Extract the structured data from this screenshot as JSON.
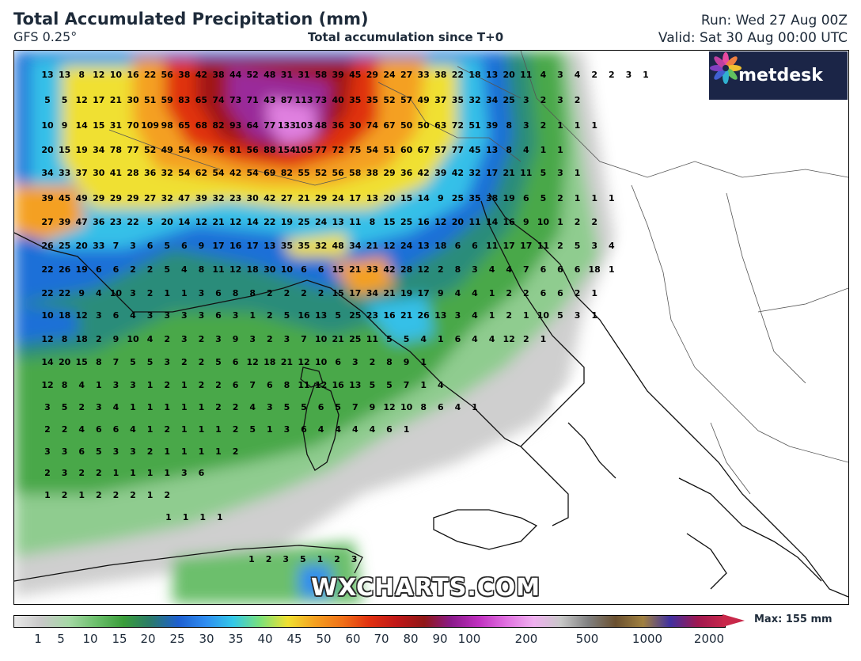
{
  "header": {
    "title": "Total Accumulated Precipitation (mm)",
    "model": "GFS 0.25°",
    "subtitle": "Total accumulation since T+0",
    "run": "Run: Wed 27 Aug 00Z",
    "valid": "Valid: Sat 30 Aug 00:00 UTC"
  },
  "logo": {
    "text": "metdesk",
    "icon": "flower-logo-icon",
    "bg": "#1b2547"
  },
  "watermark": "WXCHARTS.COM",
  "colorbar": {
    "ticks": [
      "1",
      "5",
      "10",
      "15",
      "20",
      "25",
      "30",
      "35",
      "40",
      "45",
      "50",
      "60",
      "70",
      "80",
      "90",
      "100",
      "200",
      "500",
      "1000",
      "2000"
    ],
    "max_label": "Max: 155 mm",
    "colors": [
      "#e8e8e8",
      "#c8c8c8",
      "#a5d8a5",
      "#6cbf6c",
      "#3a9d3a",
      "#2a7a6a",
      "#1e5fd0",
      "#2f8cf0",
      "#34c8e8",
      "#7ae07a",
      "#f0e030",
      "#f4a020",
      "#f07018",
      "#e03010",
      "#c01818",
      "#901818",
      "#8a1a8a",
      "#c030c0",
      "#e070e0",
      "#f0b0f0",
      "#c8c8c8",
      "#808080",
      "#6a5030",
      "#a08040",
      "#4030a0",
      "#a01850",
      "#c8284a"
    ]
  },
  "map_values": [
    [
      "13",
      "13",
      "8",
      "12",
      "10",
      "16",
      "22",
      "56",
      "38",
      "42",
      "38",
      "44",
      "52",
      "48",
      "31",
      "31",
      "58",
      "39",
      "45",
      "29",
      "24",
      "27",
      "33",
      "38",
      "22",
      "18",
      "13",
      "20",
      "11",
      "4",
      "3",
      "4",
      "2",
      "2",
      "3",
      "1"
    ],
    [
      "5",
      "5",
      "12",
      "17",
      "21",
      "30",
      "51",
      "59",
      "83",
      "65",
      "74",
      "73",
      "71",
      "43",
      "87",
      "113",
      "73",
      "40",
      "35",
      "35",
      "52",
      "57",
      "49",
      "37",
      "35",
      "32",
      "34",
      "25",
      "3",
      "2",
      "3",
      "2"
    ],
    [
      "10",
      "9",
      "14",
      "15",
      "31",
      "70",
      "109",
      "98",
      "65",
      "68",
      "82",
      "93",
      "64",
      "77",
      "133",
      "103",
      "48",
      "36",
      "30",
      "74",
      "67",
      "50",
      "50",
      "63",
      "72",
      "51",
      "39",
      "8",
      "3",
      "2",
      "1",
      "1",
      "1"
    ],
    [
      "20",
      "15",
      "19",
      "34",
      "78",
      "77",
      "52",
      "49",
      "54",
      "69",
      "76",
      "81",
      "56",
      "88",
      "154",
      "105",
      "77",
      "72",
      "75",
      "54",
      "51",
      "60",
      "67",
      "57",
      "77",
      "45",
      "13",
      "8",
      "4",
      "1",
      "1"
    ],
    [
      "34",
      "33",
      "37",
      "30",
      "41",
      "28",
      "36",
      "32",
      "54",
      "62",
      "54",
      "42",
      "54",
      "69",
      "82",
      "55",
      "52",
      "56",
      "58",
      "38",
      "29",
      "36",
      "42",
      "39",
      "42",
      "32",
      "17",
      "21",
      "11",
      "5",
      "3",
      "1"
    ],
    [
      "39",
      "45",
      "49",
      "29",
      "29",
      "29",
      "27",
      "32",
      "47",
      "39",
      "32",
      "23",
      "30",
      "42",
      "27",
      "21",
      "29",
      "24",
      "17",
      "13",
      "20",
      "15",
      "14",
      "9",
      "25",
      "35",
      "38",
      "19",
      "6",
      "5",
      "2",
      "1",
      "1",
      "1"
    ],
    [
      "27",
      "39",
      "47",
      "36",
      "23",
      "22",
      "5",
      "20",
      "14",
      "12",
      "21",
      "12",
      "14",
      "22",
      "19",
      "25",
      "24",
      "13",
      "11",
      "8",
      "15",
      "25",
      "16",
      "12",
      "20",
      "11",
      "14",
      "16",
      "9",
      "10",
      "1",
      "2",
      "2"
    ],
    [
      "26",
      "25",
      "20",
      "33",
      "7",
      "3",
      "6",
      "5",
      "6",
      "9",
      "17",
      "16",
      "17",
      "13",
      "35",
      "35",
      "32",
      "48",
      "34",
      "21",
      "12",
      "24",
      "13",
      "18",
      "6",
      "6",
      "11",
      "17",
      "17",
      "11",
      "2",
      "5",
      "3",
      "4"
    ],
    [
      "22",
      "26",
      "19",
      "6",
      "6",
      "2",
      "2",
      "5",
      "4",
      "8",
      "11",
      "12",
      "18",
      "30",
      "10",
      "6",
      "6",
      "15",
      "21",
      "33",
      "42",
      "28",
      "12",
      "2",
      "8",
      "3",
      "4",
      "4",
      "7",
      "6",
      "6",
      "6",
      "18",
      "1"
    ],
    [
      "22",
      "22",
      "9",
      "4",
      "10",
      "3",
      "2",
      "1",
      "1",
      "3",
      "6",
      "8",
      "8",
      "2",
      "2",
      "2",
      "2",
      "15",
      "17",
      "34",
      "21",
      "19",
      "17",
      "9",
      "4",
      "4",
      "1",
      "2",
      "2",
      "6",
      "6",
      "2",
      "1"
    ],
    [
      "10",
      "18",
      "12",
      "3",
      "6",
      "4",
      "3",
      "3",
      "3",
      "3",
      "6",
      "3",
      "1",
      "2",
      "5",
      "16",
      "13",
      "5",
      "25",
      "23",
      "16",
      "21",
      "26",
      "13",
      "3",
      "4",
      "1",
      "2",
      "1",
      "10",
      "5",
      "3",
      "1"
    ],
    [
      "12",
      "8",
      "18",
      "2",
      "9",
      "10",
      "4",
      "2",
      "3",
      "2",
      "3",
      "9",
      "3",
      "2",
      "3",
      "7",
      "10",
      "21",
      "25",
      "11",
      "5",
      "5",
      "4",
      "1",
      "6",
      "4",
      "4",
      "12",
      "2",
      "1"
    ],
    [
      "14",
      "20",
      "15",
      "8",
      "7",
      "5",
      "5",
      "3",
      "2",
      "2",
      "5",
      "6",
      "12",
      "18",
      "21",
      "12",
      "10",
      "6",
      "3",
      "2",
      "8",
      "9",
      "1"
    ],
    [
      "12",
      "8",
      "4",
      "1",
      "3",
      "3",
      "1",
      "2",
      "1",
      "2",
      "2",
      "6",
      "7",
      "6",
      "8",
      "11",
      "12",
      "16",
      "13",
      "5",
      "5",
      "7",
      "1",
      "4"
    ],
    [
      "3",
      "5",
      "2",
      "3",
      "4",
      "1",
      "1",
      "1",
      "1",
      "1",
      "2",
      "2",
      "4",
      "3",
      "5",
      "5",
      "6",
      "5",
      "7",
      "9",
      "12",
      "10",
      "8",
      "6",
      "4",
      "1"
    ],
    [
      "2",
      "2",
      "4",
      "6",
      "6",
      "4",
      "1",
      "2",
      "1",
      "1",
      "1",
      "2",
      "5",
      "1",
      "3",
      "6",
      "4",
      "4",
      "4",
      "4",
      "6",
      "1"
    ],
    [
      "3",
      "3",
      "6",
      "5",
      "3",
      "3",
      "2",
      "1",
      "1",
      "1",
      "1",
      "2"
    ],
    [
      "2",
      "3",
      "2",
      "2",
      "1",
      "1",
      "1",
      "1",
      "3",
      "6"
    ],
    [
      "1",
      "2",
      "1",
      "2",
      "2",
      "2",
      "1",
      "2"
    ],
    [
      "1",
      "1",
      "1",
      "1"
    ],
    [
      "1",
      "2",
      "3",
      "5",
      "1",
      "2",
      "3"
    ]
  ]
}
